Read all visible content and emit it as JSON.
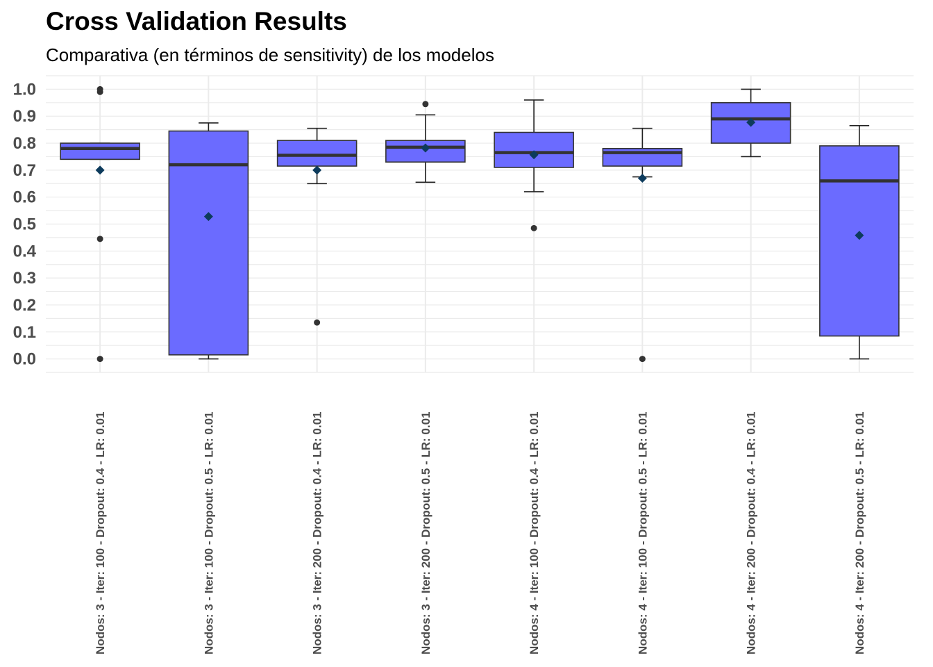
{
  "chart_data": {
    "type": "boxplot",
    "title": "Cross Validation Results",
    "subtitle": "Comparativa (en términos de sensitivity) de los modelos",
    "xlabel": "",
    "ylabel": "",
    "ylim": [
      -0.05,
      1.05
    ],
    "yticks": [
      "0.0",
      "0.1",
      "0.2",
      "0.3",
      "0.4",
      "0.5",
      "0.6",
      "0.7",
      "0.8",
      "0.9",
      "1.0"
    ],
    "grid": true,
    "legend": "none",
    "box_color": "#6b6bff",
    "mean_color": "#0d3b5c",
    "categories": [
      "Nodos: 3 - Iter: 100 - Dropout: 0.4 - LR: 0.01",
      "Nodos: 3 - Iter: 100 - Dropout: 0.5 - LR: 0.01",
      "Nodos: 3 - Iter: 200 - Dropout: 0.4 - LR: 0.01",
      "Nodos: 3 - Iter: 200 - Dropout: 0.5 - LR: 0.01",
      "Nodos: 4 - Iter: 100 - Dropout: 0.4 - LR: 0.01",
      "Nodos: 4 - Iter: 100 - Dropout: 0.5 - LR: 0.01",
      "Nodos: 4 - Iter: 200 - Dropout: 0.4 - LR: 0.01",
      "Nodos: 4 - Iter: 200 - Dropout: 0.5 - LR: 0.01"
    ],
    "boxes": [
      {
        "whisker_low": 0.74,
        "q1": 0.74,
        "median": 0.78,
        "q3": 0.8,
        "whisker_high": 0.8,
        "mean": 0.7,
        "outliers": [
          1.0,
          0.99,
          0.445,
          0.0
        ]
      },
      {
        "whisker_low": 0.0,
        "q1": 0.015,
        "median": 0.72,
        "q3": 0.845,
        "whisker_high": 0.875,
        "mean": 0.528,
        "outliers": []
      },
      {
        "whisker_low": 0.65,
        "q1": 0.715,
        "median": 0.755,
        "q3": 0.81,
        "whisker_high": 0.855,
        "mean": 0.7,
        "outliers": [
          0.135
        ]
      },
      {
        "whisker_low": 0.655,
        "q1": 0.73,
        "median": 0.785,
        "q3": 0.81,
        "whisker_high": 0.905,
        "mean": 0.782,
        "outliers": [
          0.945
        ]
      },
      {
        "whisker_low": 0.62,
        "q1": 0.71,
        "median": 0.765,
        "q3": 0.84,
        "whisker_high": 0.96,
        "mean": 0.757,
        "outliers": [
          0.485
        ]
      },
      {
        "whisker_low": 0.675,
        "q1": 0.715,
        "median": 0.765,
        "q3": 0.78,
        "whisker_high": 0.855,
        "mean": 0.67,
        "outliers": [
          0.0
        ]
      },
      {
        "whisker_low": 0.75,
        "q1": 0.8,
        "median": 0.89,
        "q3": 0.95,
        "whisker_high": 1.0,
        "mean": 0.877,
        "outliers": []
      },
      {
        "whisker_low": 0.0,
        "q1": 0.085,
        "median": 0.66,
        "q3": 0.79,
        "whisker_high": 0.865,
        "mean": 0.458,
        "outliers": []
      }
    ]
  }
}
